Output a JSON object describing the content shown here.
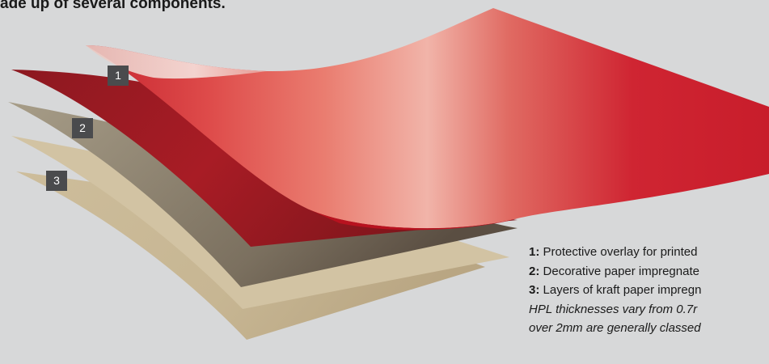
{
  "heading": "ade up of several components.",
  "layers": [
    {
      "number": "1",
      "color": "#d31f2e"
    },
    {
      "number": "2",
      "color": "#9c1d24"
    },
    {
      "number": "3",
      "color": "#c9b897"
    }
  ],
  "legend": [
    {
      "number": "1:",
      "text": "Protective overlay for printed"
    },
    {
      "number": "2:",
      "text": "Decorative paper impregnate"
    },
    {
      "number": "3:",
      "text": "Layers of kraft paper impregn"
    }
  ],
  "note": [
    "HPL thicknesses vary from 0.7r",
    "over 2mm are generally classed"
  ]
}
